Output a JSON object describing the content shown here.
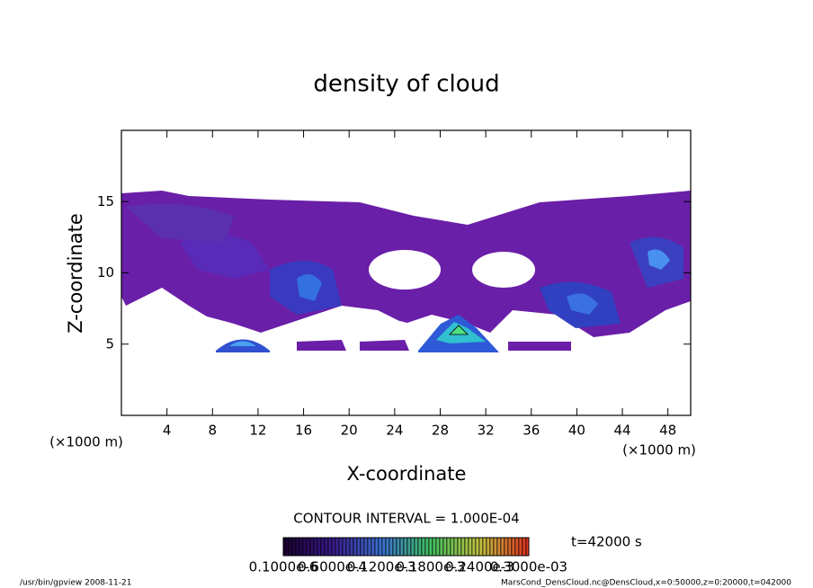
{
  "chart_data": {
    "type": "contour",
    "title": "density of cloud",
    "xlabel": "X-coordinate",
    "ylabel": "Z-coordinate",
    "x_unit": "(×1000 m)",
    "y_unit": "(×1000 m)",
    "xlim": [
      0,
      50
    ],
    "ylim": [
      0,
      20
    ],
    "xticks": [
      4,
      8,
      12,
      16,
      20,
      24,
      28,
      32,
      36,
      40,
      44,
      48
    ],
    "yticks": [
      5,
      10,
      15
    ],
    "contour_interval": "CONTOUR INTERVAL = 1.000E-04",
    "time": "t=42000 s",
    "colorbar_labels": [
      "0.1000e-6",
      "0.6000e-4",
      "0.1200e-3",
      "0.1800e-3",
      "0.2400e-3",
      "0.3000e-03"
    ],
    "footer_left": "/usr/bin/gpview  2008-11-21",
    "footer_right": "MarsCond_DensCloud.nc@DensCloud,x=0:50000,z=0:20000,t=042000"
  }
}
